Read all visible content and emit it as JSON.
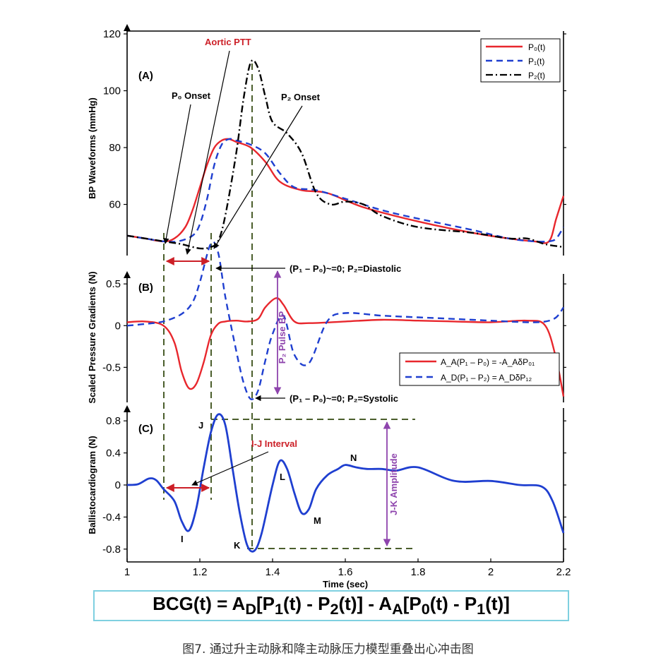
{
  "caption": "图7. 通过升主动脉和降主动脉压力模型重叠出心冲击图",
  "equation": {
    "bcg": "BCG(t)",
    "eq": " = A",
    "sub_d": "D",
    "p1": "[P",
    "sub1": "1",
    "mid": "(t) - P",
    "sub2": "2",
    "mid2": "(t)] - A",
    "sub_a": "A",
    "p0": "[P",
    "sub0": "0",
    "mid3": "(t) - P",
    "sub1b": "1",
    "end": "(t)]"
  },
  "annotations": {
    "panel_a": "(A)",
    "panel_b": "(B)",
    "panel_c": "(C)",
    "aortic_ptt": "Aortic PTT",
    "p0_onset": "P₀ Onset",
    "p2_onset": "P₂ Onset",
    "diastolic": "(P₁ – P₀)~=0; P₂=Diastolic",
    "systolic": "(P₁ – P₀)~=0; P₂=Systolic",
    "pulse_bp": "P₂ Pulse BP",
    "ij_interval": "I-J Interval",
    "jk_amplitude": "J-K Amplitude",
    "I": "I",
    "J": "J",
    "K": "K",
    "L": "L",
    "M": "M",
    "N": "N"
  },
  "colors": {
    "red": "#e8272d",
    "blue": "#1f3fd0",
    "black": "#000000",
    "guide": "#4b5e2c",
    "purple": "#8e44ad",
    "annotation_red": "#cc1f27"
  },
  "chart_data": [
    {
      "type": "line",
      "panel": "(A)",
      "ylabel": "BP Waveforms (mmHg)",
      "xlabel": "",
      "xlim": [
        1,
        2.2
      ],
      "ylim": [
        42,
        121
      ],
      "yticks": [
        60,
        80,
        100,
        120
      ],
      "legend": "top-right",
      "series": [
        {
          "name": "P₀(t)",
          "color": "#e8272d",
          "style": "solid",
          "x": [
            1.0,
            1.05,
            1.1,
            1.13,
            1.16,
            1.18,
            1.2,
            1.22,
            1.24,
            1.26,
            1.28,
            1.3,
            1.34,
            1.38,
            1.42,
            1.48,
            1.55,
            1.65,
            1.8,
            1.95,
            2.05,
            2.12,
            2.16,
            2.18,
            2.2
          ],
          "y": [
            49,
            48,
            47,
            48,
            52,
            58,
            66,
            74,
            80,
            82.5,
            83,
            82,
            80,
            75,
            68,
            65,
            64,
            59,
            54,
            50,
            48,
            47,
            47,
            55,
            63
          ]
        },
        {
          "name": "P₁(t)",
          "color": "#1f3fd0",
          "style": "dashed",
          "x": [
            1.0,
            1.05,
            1.1,
            1.14,
            1.18,
            1.2,
            1.22,
            1.24,
            1.26,
            1.28,
            1.3,
            1.34,
            1.38,
            1.42,
            1.46,
            1.52,
            1.6,
            1.7,
            1.8,
            1.95,
            2.05,
            2.12,
            2.16,
            2.18,
            2.2
          ],
          "y": [
            49,
            48,
            47,
            47,
            49,
            53,
            62,
            74,
            81,
            83,
            82.5,
            81,
            78,
            71,
            66,
            65,
            62,
            58,
            55,
            51,
            48,
            47,
            47,
            48,
            52
          ]
        },
        {
          "name": "P₂(t)",
          "color": "#000000",
          "style": "dashdot",
          "x": [
            1.0,
            1.05,
            1.1,
            1.15,
            1.2,
            1.23,
            1.25,
            1.27,
            1.3,
            1.32,
            1.34,
            1.36,
            1.38,
            1.4,
            1.44,
            1.48,
            1.52,
            1.56,
            1.6,
            1.65,
            1.7,
            1.8,
            1.95,
            2.05,
            2.1,
            2.15,
            2.2
          ],
          "y": [
            49,
            48,
            47,
            46,
            44.5,
            45,
            47,
            56,
            78,
            97,
            110,
            108,
            98,
            89,
            85,
            78,
            64,
            60,
            61,
            60,
            56,
            52,
            50,
            48,
            48,
            46,
            45
          ]
        }
      ]
    },
    {
      "type": "line",
      "panel": "(B)",
      "ylabel": "Scaled Pressure Gradients (N)",
      "xlabel": "",
      "xlim": [
        1,
        2.2
      ],
      "ylim": [
        -0.92,
        0.62
      ],
      "yticks": [
        -0.5,
        0,
        0.5
      ],
      "legend": "bottom-right",
      "series": [
        {
          "name": "A_A(P₁ – P₀) = -A_AδP₀₁",
          "color": "#e8272d",
          "style": "solid",
          "x": [
            1.0,
            1.05,
            1.1,
            1.13,
            1.15,
            1.17,
            1.19,
            1.21,
            1.23,
            1.25,
            1.27,
            1.3,
            1.33,
            1.36,
            1.38,
            1.41,
            1.43,
            1.46,
            1.5,
            1.6,
            1.7,
            1.8,
            1.9,
            2.0,
            2.1,
            2.15,
            2.18,
            2.2
          ],
          "y": [
            0.04,
            0.05,
            0.0,
            -0.2,
            -0.55,
            -0.75,
            -0.7,
            -0.45,
            -0.12,
            0.02,
            0.05,
            0.06,
            0.05,
            0.08,
            0.22,
            0.33,
            0.25,
            0.05,
            0.03,
            0.05,
            0.07,
            0.06,
            0.05,
            0.04,
            0.06,
            0.0,
            -0.4,
            -0.85
          ]
        },
        {
          "name": "A_D(P₁ – P₂) = A_DδP₁₂",
          "color": "#1f3fd0",
          "style": "dashed",
          "x": [
            1.0,
            1.05,
            1.1,
            1.15,
            1.18,
            1.2,
            1.23,
            1.25,
            1.27,
            1.3,
            1.32,
            1.34,
            1.36,
            1.38,
            1.4,
            1.43,
            1.46,
            1.5,
            1.55,
            1.6,
            1.7,
            1.8,
            1.9,
            2.0,
            2.1,
            2.15,
            2.18,
            2.2
          ],
          "y": [
            0.0,
            0.02,
            0.05,
            0.14,
            0.28,
            0.52,
            0.98,
            0.88,
            0.35,
            -0.3,
            -0.68,
            -0.88,
            -0.78,
            -0.42,
            -0.1,
            0.12,
            -0.35,
            -0.45,
            0.05,
            0.15,
            0.12,
            0.1,
            0.08,
            0.06,
            0.04,
            0.05,
            0.1,
            0.22
          ]
        }
      ]
    },
    {
      "type": "line",
      "panel": "(C)",
      "ylabel": "Ballistocardiogram (N)",
      "xlabel": "Time (sec)",
      "xlim": [
        1,
        2.2
      ],
      "ylim": [
        -0.96,
        0.96
      ],
      "yticks": [
        -0.8,
        -0.4,
        0,
        0.4,
        0.8
      ],
      "xticks": [
        1,
        1.2,
        1.4,
        1.6,
        1.8,
        2,
        2.2
      ],
      "xticklabels": [
        "1",
        "1.2",
        "1.4",
        "1.6",
        "1.8",
        "2",
        "2.2"
      ],
      "series": [
        {
          "name": "",
          "color": "#1f3fd0",
          "style": "solid",
          "x": [
            1.0,
            1.03,
            1.06,
            1.08,
            1.1,
            1.13,
            1.15,
            1.17,
            1.19,
            1.21,
            1.23,
            1.25,
            1.27,
            1.29,
            1.31,
            1.33,
            1.35,
            1.37,
            1.4,
            1.42,
            1.44,
            1.46,
            1.48,
            1.5,
            1.52,
            1.55,
            1.58,
            1.6,
            1.63,
            1.66,
            1.7,
            1.74,
            1.8,
            1.9,
            2.0,
            2.08,
            2.14,
            2.17,
            2.2
          ],
          "y": [
            0.0,
            0.01,
            0.08,
            0.06,
            -0.05,
            -0.2,
            -0.45,
            -0.57,
            -0.3,
            0.2,
            0.65,
            0.88,
            0.75,
            0.2,
            -0.35,
            -0.75,
            -0.82,
            -0.6,
            0.0,
            0.3,
            0.2,
            -0.1,
            -0.35,
            -0.3,
            -0.05,
            0.12,
            0.2,
            0.25,
            0.22,
            0.2,
            0.2,
            0.18,
            0.22,
            0.05,
            0.05,
            0.0,
            -0.02,
            -0.2,
            -0.6
          ]
        }
      ]
    }
  ]
}
